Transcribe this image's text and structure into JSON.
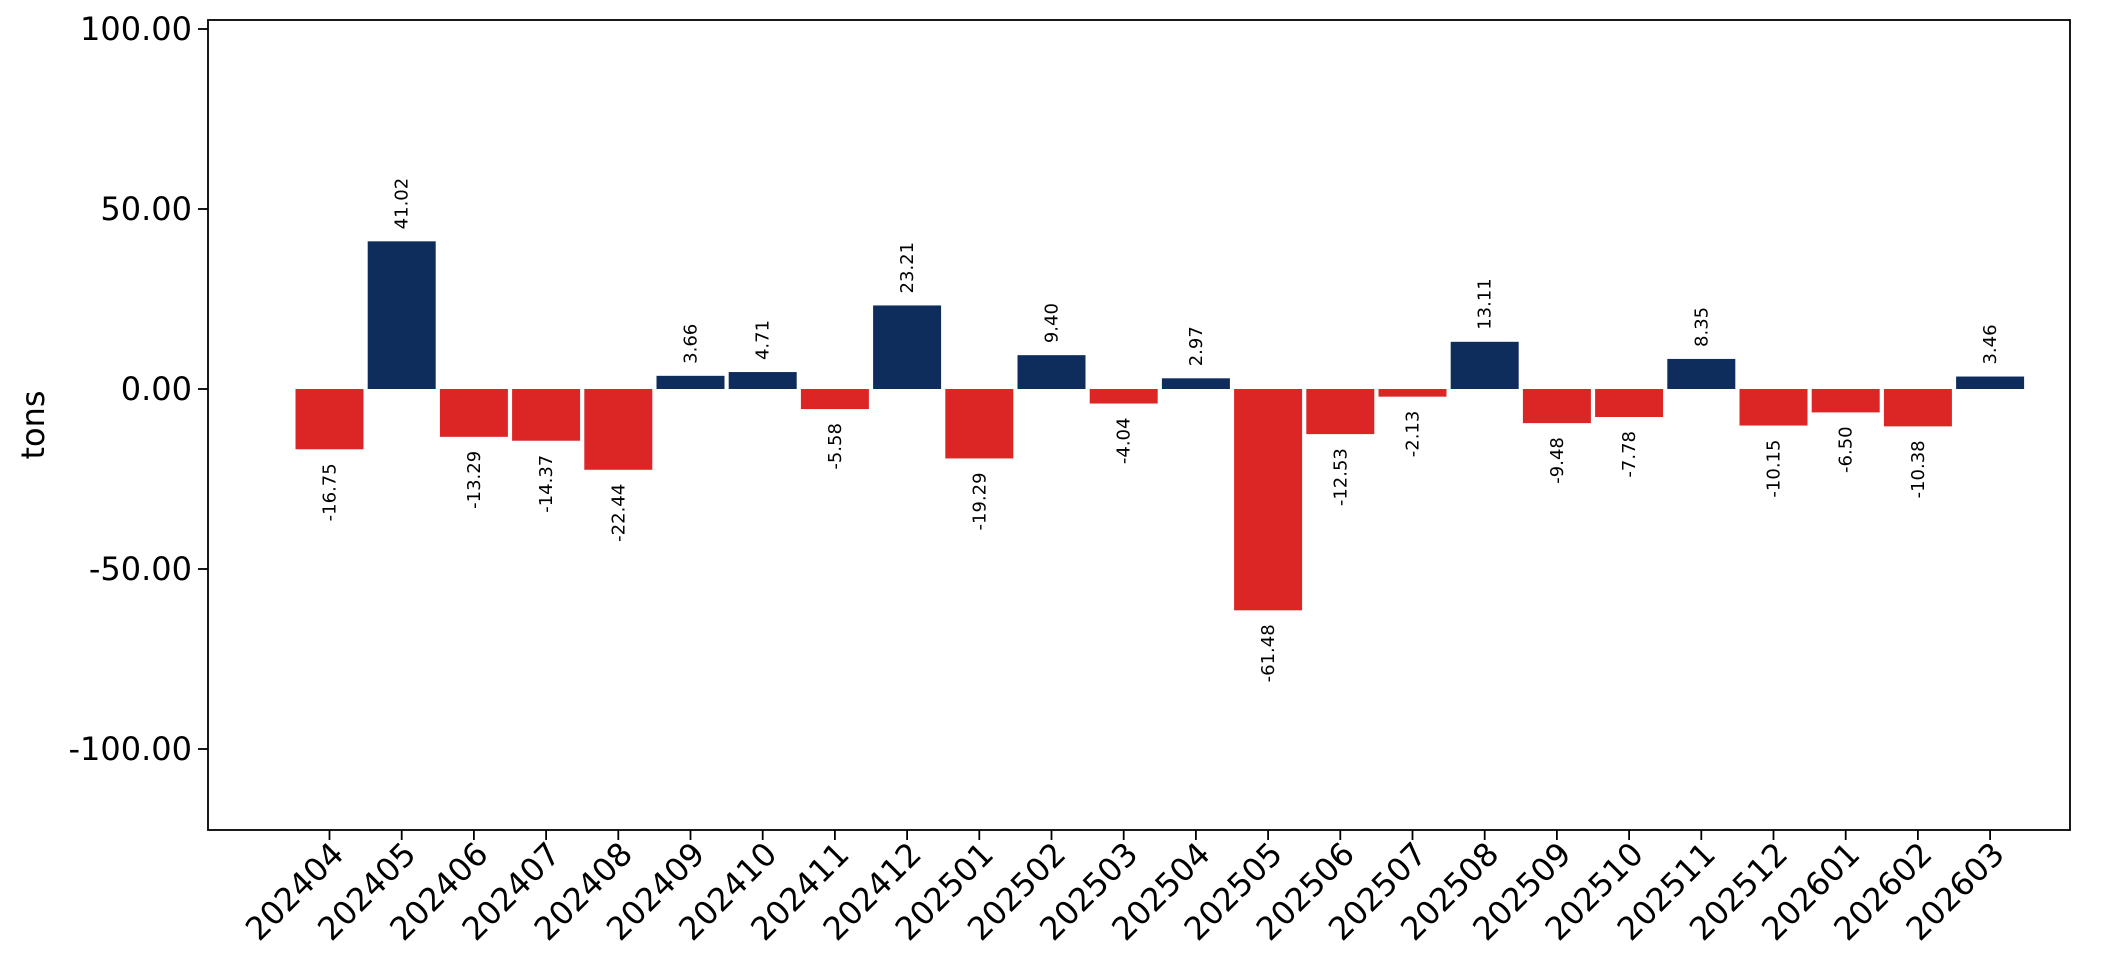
{
  "chart_data": {
    "type": "bar",
    "title": "",
    "xlabel": "",
    "ylabel": "tons",
    "ylim": [
      -122.5,
      102.5
    ],
    "yticks": [
      "100.00",
      "50.00",
      "0.00",
      "-50.00",
      "-100.00"
    ],
    "grid": false,
    "categories": [
      "202404",
      "202405",
      "202406",
      "202407",
      "202408",
      "202409",
      "202410",
      "202411",
      "202412",
      "202501",
      "202502",
      "202503",
      "202504",
      "202505",
      "202506",
      "202507",
      "202508",
      "202509",
      "202510",
      "202511",
      "202512",
      "202601",
      "202602",
      "202603"
    ],
    "values": [
      -16.75,
      41.02,
      -13.29,
      -14.37,
      -22.44,
      3.66,
      4.71,
      -5.58,
      23.21,
      -19.29,
      9.4,
      -4.04,
      2.97,
      -61.48,
      -12.53,
      -2.13,
      13.11,
      -9.48,
      -7.78,
      8.35,
      -10.15,
      -6.5,
      -10.38,
      3.46
    ],
    "value_labels": [
      "-16.75",
      "41.02",
      "-13.29",
      "-14.37",
      "-22.44",
      "3.66",
      "4.71",
      "-5.58",
      "23.21",
      "-19.29",
      "9.40",
      "-4.04",
      "2.97",
      "-61.48",
      "-12.53",
      "-2.13",
      "13.11",
      "-9.48",
      "-7.78",
      "8.35",
      "-10.15",
      "-6.50",
      "-10.38",
      "3.46"
    ],
    "colors": {
      "positive": "#0e2c5c",
      "negative": "#dc2626"
    }
  }
}
